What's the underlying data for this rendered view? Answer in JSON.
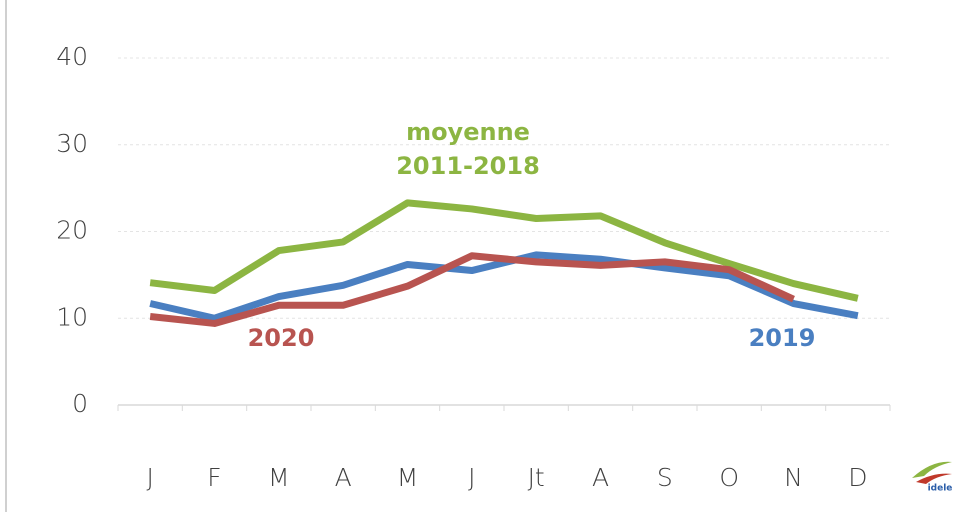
{
  "chart_data": {
    "type": "line",
    "categories": [
      "J",
      "F",
      "M",
      "A",
      "M",
      "J",
      "Jt",
      "A",
      "S",
      "O",
      "N",
      "D"
    ],
    "series": [
      {
        "name": "moyenne 2011-2018",
        "color": "#8cb542",
        "values": [
          14.1,
          13.2,
          17.8,
          18.8,
          23.3,
          22.6,
          21.5,
          21.8,
          18.7,
          16.3,
          14.0,
          12.3
        ]
      },
      {
        "name": "2019",
        "color": "#4a7fc1",
        "values": [
          11.7,
          10.0,
          12.5,
          13.8,
          16.2,
          15.5,
          17.3,
          16.8,
          15.8,
          14.9,
          11.7,
          10.3
        ]
      },
      {
        "name": "2020",
        "color": "#b85450",
        "values": [
          10.2,
          9.4,
          11.5,
          11.5,
          13.7,
          17.2,
          16.5,
          16.1,
          16.5,
          15.6,
          12.2,
          null
        ]
      }
    ],
    "ylim": [
      0,
      40
    ],
    "yticks": [
      0,
      10,
      20,
      30,
      40
    ],
    "grid": true,
    "logo": "idele"
  }
}
